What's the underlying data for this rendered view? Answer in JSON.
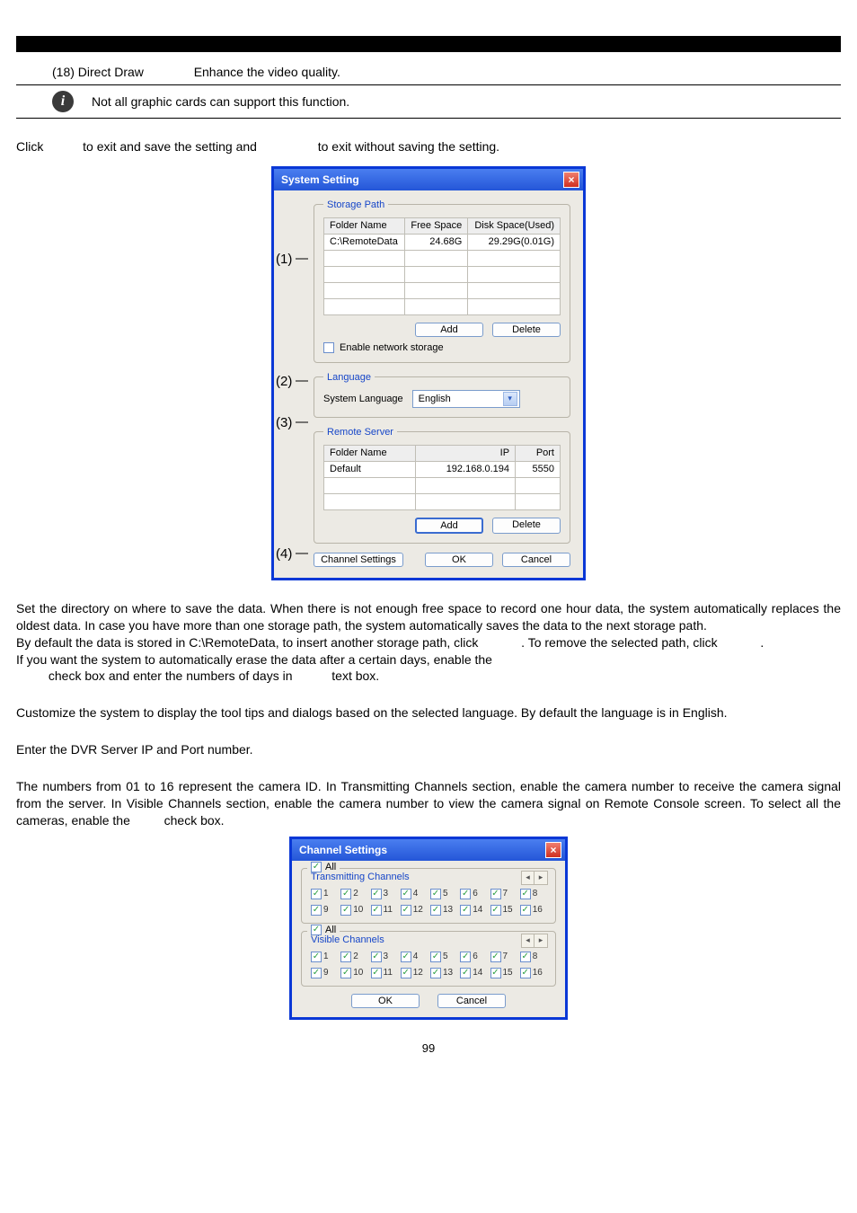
{
  "header": {
    "item_label": "(18) Direct Draw",
    "item_desc": "Enhance the video quality.",
    "info_note": "Not all graphic cards can support this function."
  },
  "intro_line": {
    "pre": "Click",
    "mid": "to exit and save the setting and",
    "post": "to exit without saving the setting."
  },
  "callouts": [
    "(1)",
    "(2)",
    "(3)",
    "(4)"
  ],
  "sys_dialog": {
    "title": "System Setting",
    "storage": {
      "legend": "Storage Path",
      "cols": [
        "Folder Name",
        "Free Space",
        "Disk Space(Used)"
      ],
      "row": [
        "C:\\RemoteData",
        "24.68G",
        "29.29G(0.01G)"
      ],
      "add": "Add",
      "delete": "Delete",
      "enable_net": "Enable network storage"
    },
    "language": {
      "legend": "Language",
      "label": "System Language",
      "value": "English"
    },
    "remote": {
      "legend": "Remote Server",
      "cols": [
        "Folder Name",
        "IP",
        "Port"
      ],
      "row": [
        "Default",
        "192.168.0.194",
        "5550"
      ],
      "add": "Add",
      "delete": "Delete"
    },
    "channel_btn": "Channel Settings",
    "ok": "OK",
    "cancel": "Cancel"
  },
  "body": {
    "p1a": "Set the directory on where to save the data. When there is not enough free space to record one hour data, the system automatically replaces the oldest data. In case you have more than one storage path, the system automatically saves the data to the next storage path.",
    "p1b_pre": "By default the data is stored in C:\\RemoteData, to insert another storage path, click",
    "p1b_mid": ". To remove the selected path, click",
    "p1b_post": ".",
    "p1c_pre": "If you want the system to automatically erase the data after a certain days, enable the",
    "p1c_mid": "check box and enter the numbers of days in",
    "p1c_post": "text box.",
    "p2": "Customize the system to display the tool tips and dialogs based on the selected language. By default the language is in English.",
    "p3": "Enter the DVR Server IP and Port number.",
    "p4_pre": "The numbers from 01 to 16 represent the camera ID. In Transmitting Channels section, enable the camera number to receive the camera signal from the server. In Visible Channels section, enable the camera number to view the camera signal on Remote Console screen. To select all the cameras, enable the",
    "p4_post": "check box."
  },
  "ch_dialog": {
    "title": "Channel Settings",
    "all": "All",
    "g1_legend": "Transmitting Channels",
    "g2_legend": "Visible Channels",
    "nums": [
      "1",
      "2",
      "3",
      "4",
      "5",
      "6",
      "7",
      "8",
      "9",
      "10",
      "11",
      "12",
      "13",
      "14",
      "15",
      "16"
    ],
    "ok": "OK",
    "cancel": "Cancel"
  },
  "page_number": "99",
  "colors": {
    "dialog_border": "#0a38d6",
    "legend": "#1646c8",
    "bg": "#eceae4"
  }
}
